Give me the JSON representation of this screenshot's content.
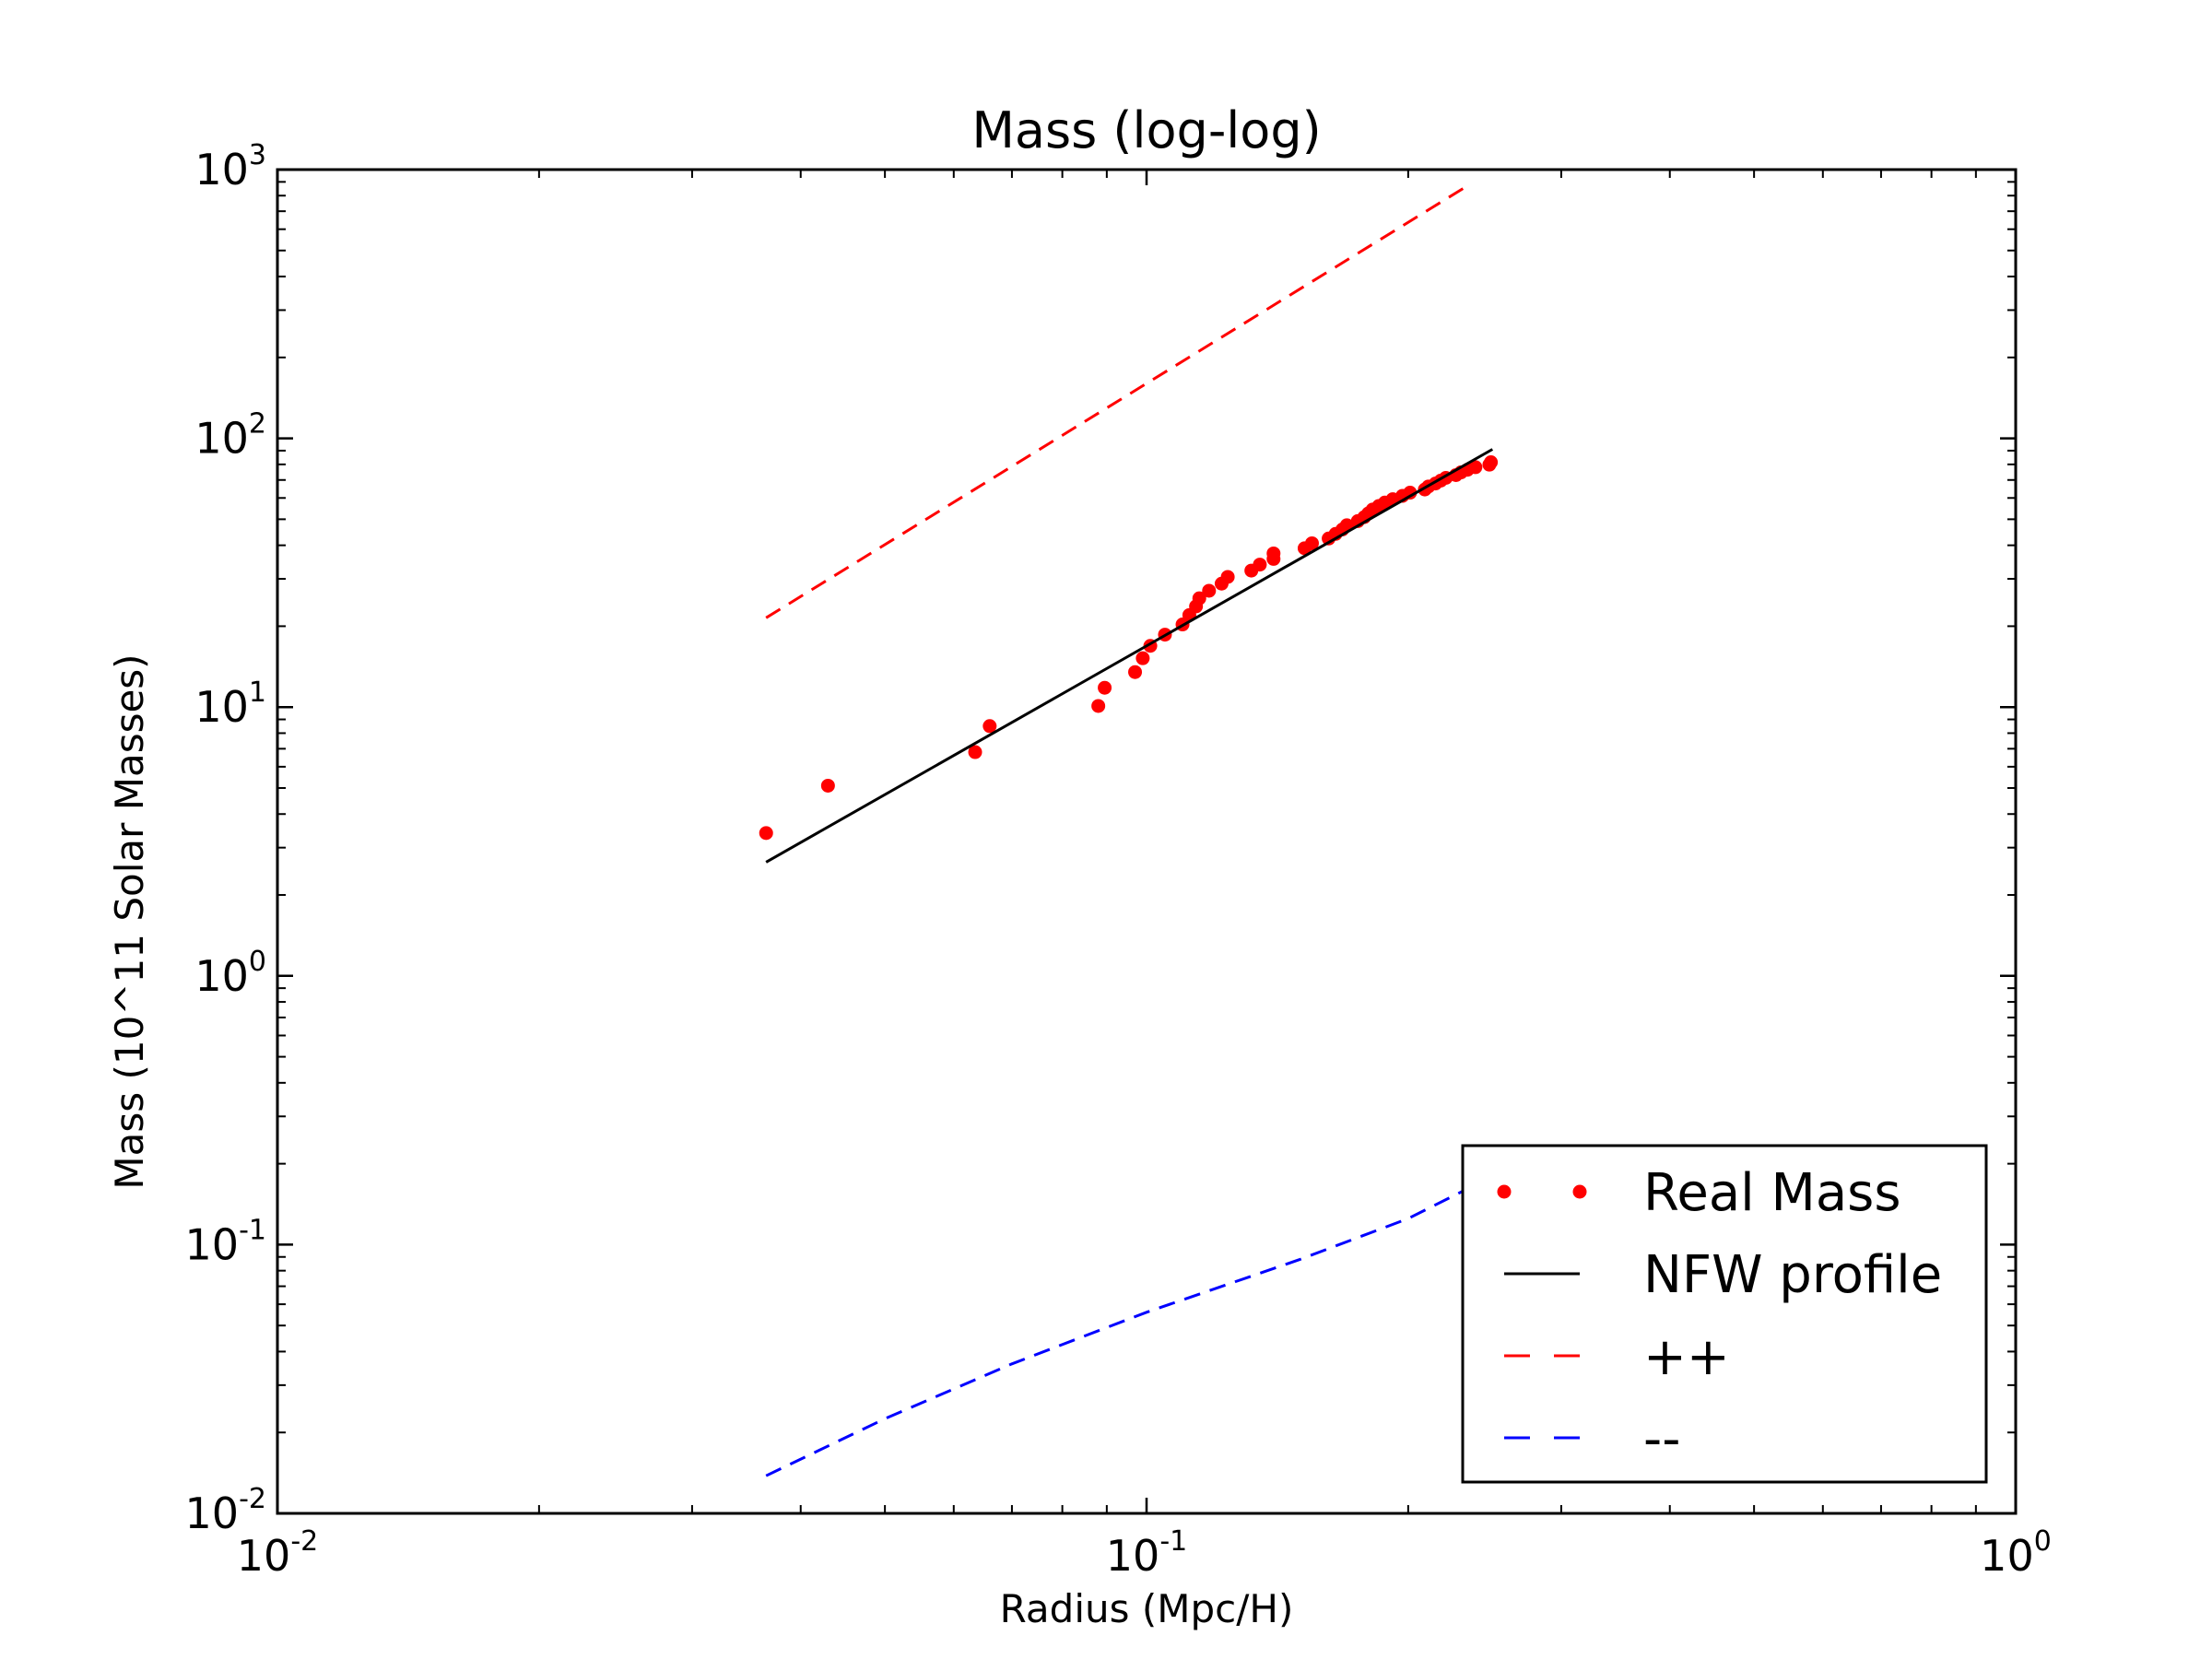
{
  "chart_data": {
    "type": "line",
    "title": "Mass (log-log)",
    "xlabel": "Radius (Mpc/H)",
    "ylabel": "Mass (10^11 Solar Masses)",
    "xscale": "log",
    "yscale": "log",
    "xlim": [
      0.01,
      1
    ],
    "ylim": [
      0.01,
      1000
    ],
    "grid": false,
    "legend_position": "lower-right",
    "x_ticks": [
      {
        "value": 0.01,
        "base": "10",
        "exp": "-2"
      },
      {
        "value": 0.1,
        "base": "10",
        "exp": "-1"
      },
      {
        "value": 1,
        "base": "10",
        "exp": "0"
      }
    ],
    "y_ticks": [
      {
        "value": 0.01,
        "base": "10",
        "exp": "-2"
      },
      {
        "value": 0.1,
        "base": "10",
        "exp": "-1"
      },
      {
        "value": 1,
        "base": "10",
        "exp": "0"
      },
      {
        "value": 10,
        "base": "10",
        "exp": "1"
      },
      {
        "value": 100,
        "base": "10",
        "exp": "2"
      },
      {
        "value": 1000,
        "base": "10",
        "exp": "3"
      }
    ],
    "series": [
      {
        "name": "Real Mass",
        "style": "markers",
        "color": "#ff0000",
        "points": [
          [
            0.0365,
            3.4
          ],
          [
            0.043,
            5.1
          ],
          [
            0.0635,
            6.8
          ],
          [
            0.066,
            8.5
          ],
          [
            0.088,
            10.1
          ],
          [
            0.0895,
            11.8
          ],
          [
            0.097,
            13.5
          ],
          [
            0.099,
            15.2
          ],
          [
            0.101,
            16.9
          ],
          [
            0.105,
            18.6
          ],
          [
            0.11,
            20.3
          ],
          [
            0.112,
            22.0
          ],
          [
            0.114,
            23.7
          ],
          [
            0.115,
            25.4
          ],
          [
            0.118,
            27.1
          ],
          [
            0.122,
            28.8
          ],
          [
            0.124,
            30.5
          ],
          [
            0.132,
            32.2
          ],
          [
            0.135,
            33.9
          ],
          [
            0.14,
            35.6
          ],
          [
            0.14,
            37.3
          ],
          [
            0.152,
            39.0
          ],
          [
            0.155,
            40.7
          ],
          [
            0.162,
            42.4
          ],
          [
            0.165,
            44.1
          ],
          [
            0.168,
            45.8
          ],
          [
            0.17,
            47.5
          ],
          [
            0.175,
            49.2
          ],
          [
            0.178,
            50.9
          ],
          [
            0.18,
            52.6
          ],
          [
            0.182,
            54.3
          ],
          [
            0.185,
            56.0
          ],
          [
            0.188,
            57.7
          ],
          [
            0.192,
            59.4
          ],
          [
            0.197,
            61.1
          ],
          [
            0.201,
            62.8
          ],
          [
            0.209,
            64.5
          ],
          [
            0.211,
            66.2
          ],
          [
            0.215,
            67.9
          ],
          [
            0.218,
            69.6
          ],
          [
            0.221,
            71.3
          ],
          [
            0.227,
            73.0
          ],
          [
            0.23,
            74.7
          ],
          [
            0.234,
            76.4
          ],
          [
            0.239,
            78.1
          ],
          [
            0.248,
            79.8
          ],
          [
            0.249,
            81.5
          ]
        ]
      },
      {
        "name": "NFW profile",
        "style": "solid",
        "color": "#000000",
        "points": [
          [
            0.0365,
            2.65
          ],
          [
            0.25,
            91
          ]
        ]
      },
      {
        "name": "++",
        "style": "dashed",
        "color": "#ff0000",
        "points": [
          [
            0.0365,
            21.5
          ],
          [
            0.234,
            870
          ]
        ]
      },
      {
        "name": "--",
        "style": "dashed",
        "color": "#0000ff",
        "points": [
          [
            0.0365,
            0.0138
          ],
          [
            0.05,
            0.0225
          ],
          [
            0.07,
            0.036
          ],
          [
            0.1,
            0.056
          ],
          [
            0.15,
            0.088
          ],
          [
            0.2,
            0.125
          ],
          [
            0.24,
            0.168
          ]
        ]
      }
    ]
  }
}
